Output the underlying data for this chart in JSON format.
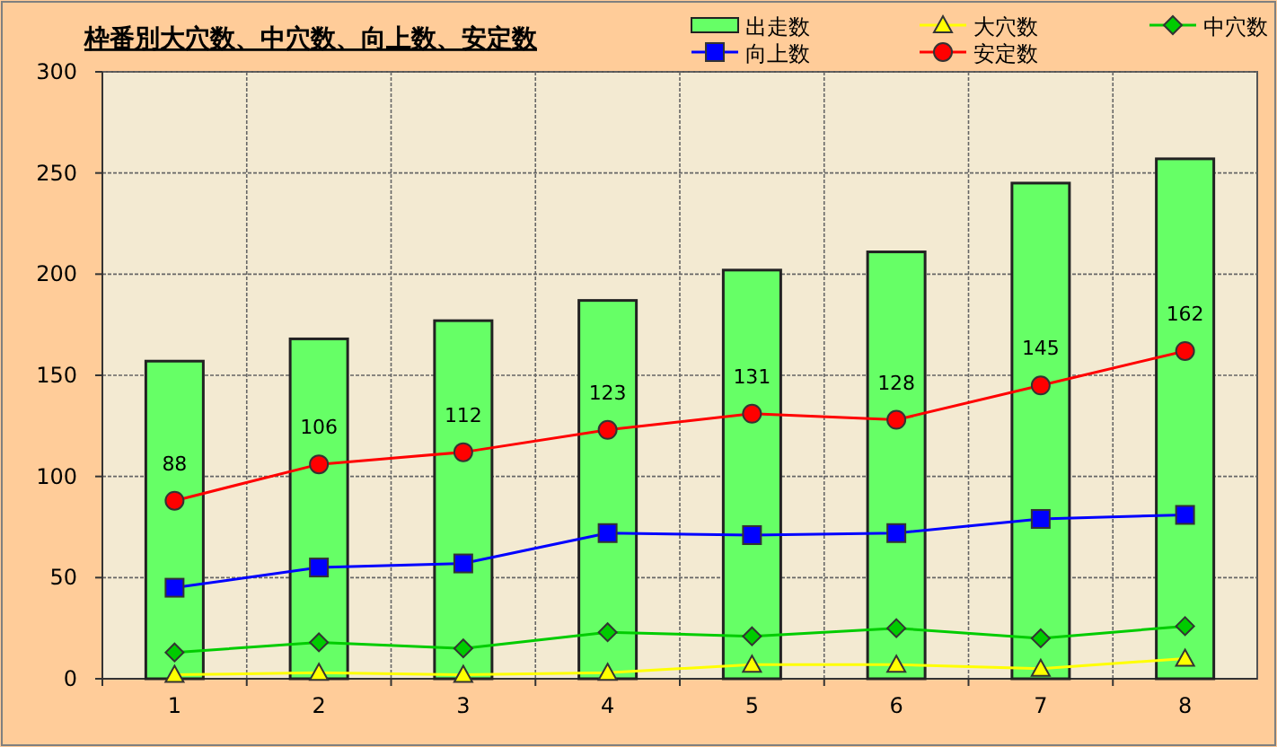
{
  "chart_data": {
    "type": "bar",
    "title": "枠番別大穴数、中穴数、向上数、安定数",
    "categories": [
      "1",
      "2",
      "3",
      "4",
      "5",
      "6",
      "7",
      "8"
    ],
    "series": [
      {
        "name": "出走数",
        "color": "#66ff66",
        "values": [
          157,
          168,
          177,
          187,
          202,
          211,
          245,
          257
        ]
      },
      {
        "name": "大穴数",
        "type": "line",
        "color": "#ffff00",
        "marker": "triangle",
        "values": [
          2,
          3,
          2,
          3,
          7,
          7,
          5,
          10
        ]
      },
      {
        "name": "中穴数",
        "type": "line",
        "color": "#00cc00",
        "marker": "diamond",
        "values": [
          13,
          18,
          15,
          23,
          21,
          25,
          20,
          26
        ]
      },
      {
        "name": "向上数",
        "type": "line",
        "color": "#0000ff",
        "marker": "square",
        "values": [
          45,
          55,
          57,
          72,
          71,
          72,
          79,
          81
        ]
      },
      {
        "name": "安定数",
        "type": "line",
        "color": "#ff0000",
        "marker": "circle",
        "values": [
          88,
          106,
          112,
          123,
          131,
          128,
          145,
          162
        ],
        "value_labels": [
          "88",
          "106",
          "112",
          "123",
          "131",
          "128",
          "145",
          "162"
        ]
      }
    ],
    "ylim": [
      0,
      300
    ],
    "yticks": [
      0,
      50,
      100,
      150,
      200,
      250,
      300
    ],
    "grid": true,
    "legend": "top right"
  }
}
